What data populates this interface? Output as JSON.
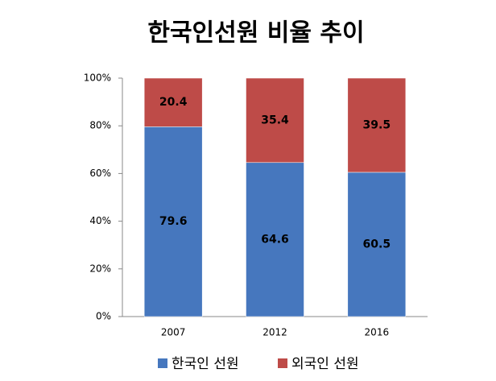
{
  "chart_data": {
    "type": "stacked-bar",
    "title": "한국인선원 비율 추이",
    "categories": [
      "2007",
      "2012",
      "2016"
    ],
    "series": [
      {
        "name": "한국인 선원",
        "color": "#4677be",
        "values": [
          79.6,
          64.6,
          60.5
        ]
      },
      {
        "name": "외국인 선원",
        "color": "#be4b48",
        "values": [
          20.4,
          35.4,
          39.5
        ]
      }
    ],
    "ylim": [
      0,
      100
    ],
    "yticks": [
      {
        "value": 0,
        "label": "0%"
      },
      {
        "value": 20,
        "label": "20%"
      },
      {
        "value": 40,
        "label": "40%"
      },
      {
        "value": 60,
        "label": "60%"
      },
      {
        "value": 80,
        "label": "80%"
      },
      {
        "value": 100,
        "label": "100%"
      }
    ],
    "grid": false,
    "legend": "bottom"
  }
}
